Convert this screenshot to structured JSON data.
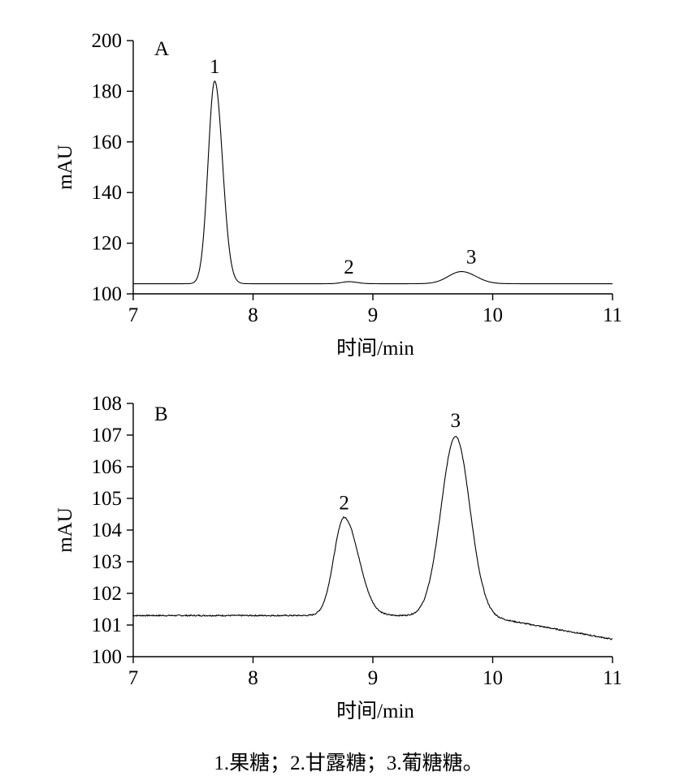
{
  "chart_data": [
    {
      "type": "line",
      "panel_label": "A",
      "xlabel": "时间/min",
      "ylabel": "mAU",
      "xlim": [
        7,
        11
      ],
      "ylim": [
        100,
        200
      ],
      "x_ticks": [
        7,
        8,
        9,
        10,
        11
      ],
      "y_ticks": [
        100,
        120,
        140,
        160,
        180,
        200
      ],
      "baseline": 104,
      "peaks": [
        {
          "label": "1",
          "x": 7.68,
          "y": 184
        },
        {
          "label": "2",
          "x": 8.8,
          "y": 104.8
        },
        {
          "label": "3",
          "x": 9.74,
          "y": 108.8
        }
      ]
    },
    {
      "type": "line",
      "panel_label": "B",
      "xlabel": "时间/min",
      "ylabel": "mAU",
      "xlim": [
        7,
        11
      ],
      "ylim": [
        100,
        108
      ],
      "x_ticks": [
        7,
        8,
        9,
        10,
        11
      ],
      "y_ticks": [
        100,
        101,
        102,
        103,
        104,
        105,
        106,
        107,
        108
      ],
      "baseline_start": 101.3,
      "baseline_end": 100.55,
      "peaks": [
        {
          "label": "2",
          "x": 8.76,
          "y": 104.4
        },
        {
          "label": "3",
          "x": 9.69,
          "y": 107
        }
      ]
    }
  ],
  "caption": "1.果糖；2.甘露糖；3.葡糖糖。"
}
